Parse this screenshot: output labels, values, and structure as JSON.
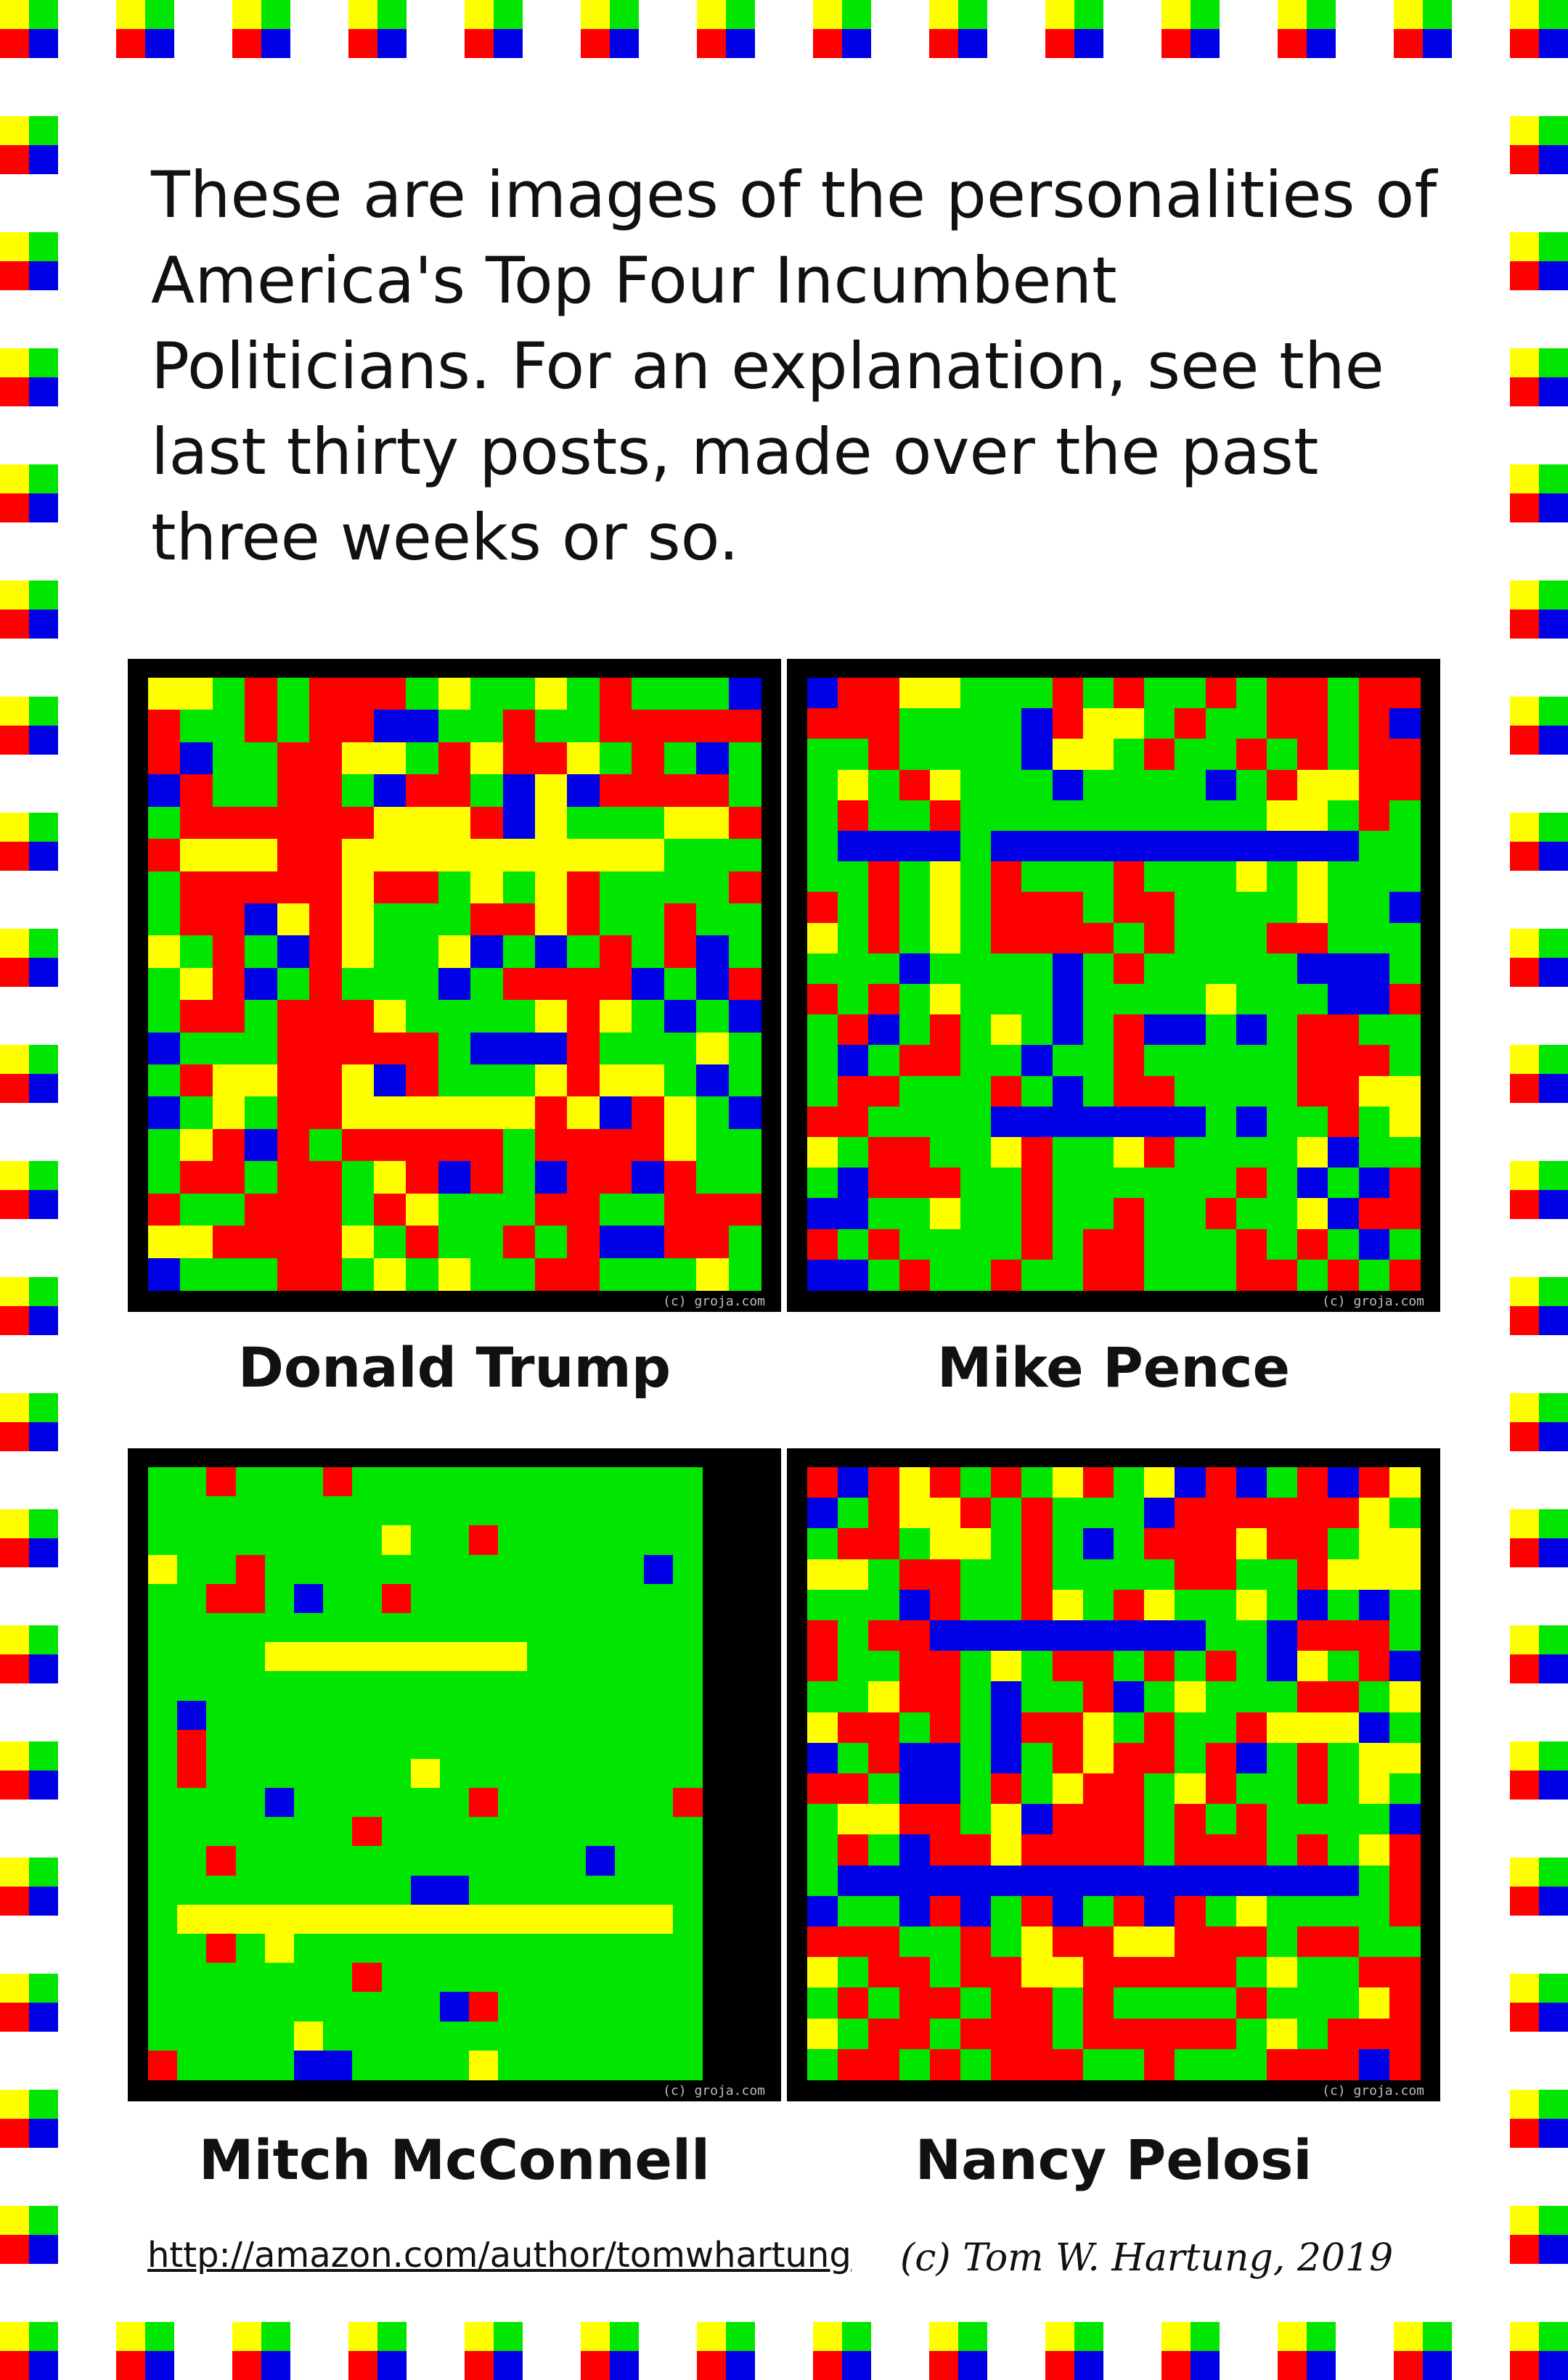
{
  "intro_text": "These are images of the personalities of America's Top Four Incumbent Politicians.  For an explanation, see the last thirty posts, made over the past three weeks or so.",
  "colors": {
    "red": "#ff0000",
    "yellow": "#ffff00",
    "green": "#00e600",
    "blue": "#0000e6",
    "frame": "#000000",
    "credit": "#bdbdbd"
  },
  "border_icon": "four-color-square-icon",
  "panels": [
    {
      "id": "trump",
      "name": "Donald Trump",
      "credit": "(c) groja.com",
      "grid": [
        "YYGRGRRRGYGGYGRGGGB",
        "RGGRGRRBBGGRGGRRRRR",
        "RBGGRRYYGRYRRYGRGBG",
        "BRGGRRGBRRGBYBRRRRG",
        "GRRRRRRYYYRBYGGGYYR",
        "RYYYRRYYYYYYYYYYGGG",
        "GRRRRRYRRGYGYRGGGGR",
        "GRRBYRYGGGRRYRGGRGG",
        "YGRGBRYGGYBGBGRGRBG",
        "GYRBGRGGGBGRRRRBGBR",
        "GRRGRRRYGGGGYRYGBGB",
        "BGGGRRRRRGBBBRGGGYG",
        "GRYYRRYBRGGGYRYYGBG",
        "BGYGRRYYYYYYRYBRYGB",
        "GYRBRGRRRRRGRRRRYGG",
        "GRRGRRGYRBRGBRRBRGG",
        "RGGRRRGRYGGGRRGGRRR",
        "YYRRRRYGRGGRGRBBRRG",
        "BGGGRRGYGYGGRRGGGYG"
      ]
    },
    {
      "id": "pence",
      "name": "Mike Pence",
      "credit": "(c) groja.com",
      "grid": [
        "BRRYYGGGRGRGGRGRRGRR",
        "RRRGGGGBRYYGRGGRRGRB",
        "GGRGGGGBYYGRGGRGRGRR",
        "GYGRYGGGBGGGGBGRYYRR",
        "GRGGRGGGGGGGGGGYYGRG",
        "GBBBBGBBBBBBBBBBBBGG",
        "GGRGYGRGGGRGGGYGYGGG",
        "RGRGYGRRRGRRGGGGYGGB",
        "YGRGYGRRRRGRGGGRRGGG",
        "GGGBGGGGBGRGGGGGBBBG",
        "RGRGYGGGBGGGGYGGGBBR",
        "GRBGRGYGBGRBBGBGRRGG",
        "GBGRRGGBGGRGGGGGRRRG",
        "GRRGGGRGBGRRGGGGRRYY",
        "RRGGGGBBBBBBBGBGGRGY",
        "YGRRGGYRGGYRGGGGYBGG",
        "GBRRRGGRGGGGGGRGBGBR",
        "BBGGYGGRGGRGGRGGYBRR",
        "RGRGGGGRGRRGGGRGRGBG",
        "BBGRGGRGGRRGGGRRGRGR"
      ]
    },
    {
      "id": "mcconnell",
      "name": "Mitch McConnell",
      "credit": "(c) groja.com",
      "grid": [
        "GGRGGGRGGGGGGGGGGGG",
        "GGGGGGGGGGGGGGGGGGG",
        "GGGGGGGGYGGRGGGGGGG",
        "YGGRGGGGGGGGGGGGGBG",
        "GGRRGBGGRGGGGGGGGGG",
        "GGGGGGGGGGGGGGGGGGG",
        "GGGGYYYYYYYYYGGGGGG",
        "GGGGGGGGGGGGGGGGGGG",
        "GBGGGGGGGGGGGGGGGGG",
        "GRGGGGGGGGGGGGGGGGG",
        "GRGGGGGGGYGGGGGGGGG",
        "GGGGBGGGGGGRGGGGGGR",
        "GGGGGGGRGGGGGGGGGGG",
        "GGRGGGGGGGGGGGGBGGG",
        "GGGGGGGGGBBGGGGGGGG",
        "GYYYYYYYYYYYYYYYYYG",
        "GGRGYGGGGGGGGGGGGGG",
        "GGGGGGGRGGGGGGGGGGG",
        "GGGGGGGGGGBRGGGGGGG",
        "GGGGGYGGGGGGGGGGGGG",
        "RGGGGBBGGGGYGGGGGGG"
      ]
    },
    {
      "id": "pelosi",
      "name": "Nancy Pelosi",
      "credit": "(c) groja.com",
      "grid": [
        "RBRYRGRGYRGYBRBGRBRY",
        "BGRYYRGRGGGBRRRRRRYG",
        "GRRGYYGRGBGRRRYRRGYY",
        "YYGRRGGRGGGGRRGGRYYY",
        "GGGBRGGRYGRYGGYGBGBG",
        "RGRRBBBBBBBBBGGBRRRG",
        "RGGRRGYGRRGRGRGBYGRB",
        "GGYRRGBGGRBGYGGGRRGY",
        "YRRGRGBRRYGRGGRYYYBG",
        "BGRBBGBGRYRRGRBGRGYY",
        "RRGBBGRGYRRGYRGGRGYG",
        "GYYRRGYBRRRGRGRGGGGB",
        "GRGBRRYRRRRGRRRGRGYR",
        "GBBBBBBBBBBBBBBBBBGR",
        "BGGBRBGRBGRBRGYGGGGR",
        "RRRGGRGYRRYYRRRGRRGG",
        "YGRRGRRYYRRRRRGYGGRR",
        "GRGRRGRRGRGGGGRGGGYR",
        "YGRRGRRRGRRRRRGYGRRR",
        "GRRGRGRRRGGRGGGRRRBR"
      ]
    }
  ],
  "footer": {
    "link": "http://amazon.com/author/tomwhartung",
    "copyright": "(c) Tom W. Hartung, 2019"
  }
}
